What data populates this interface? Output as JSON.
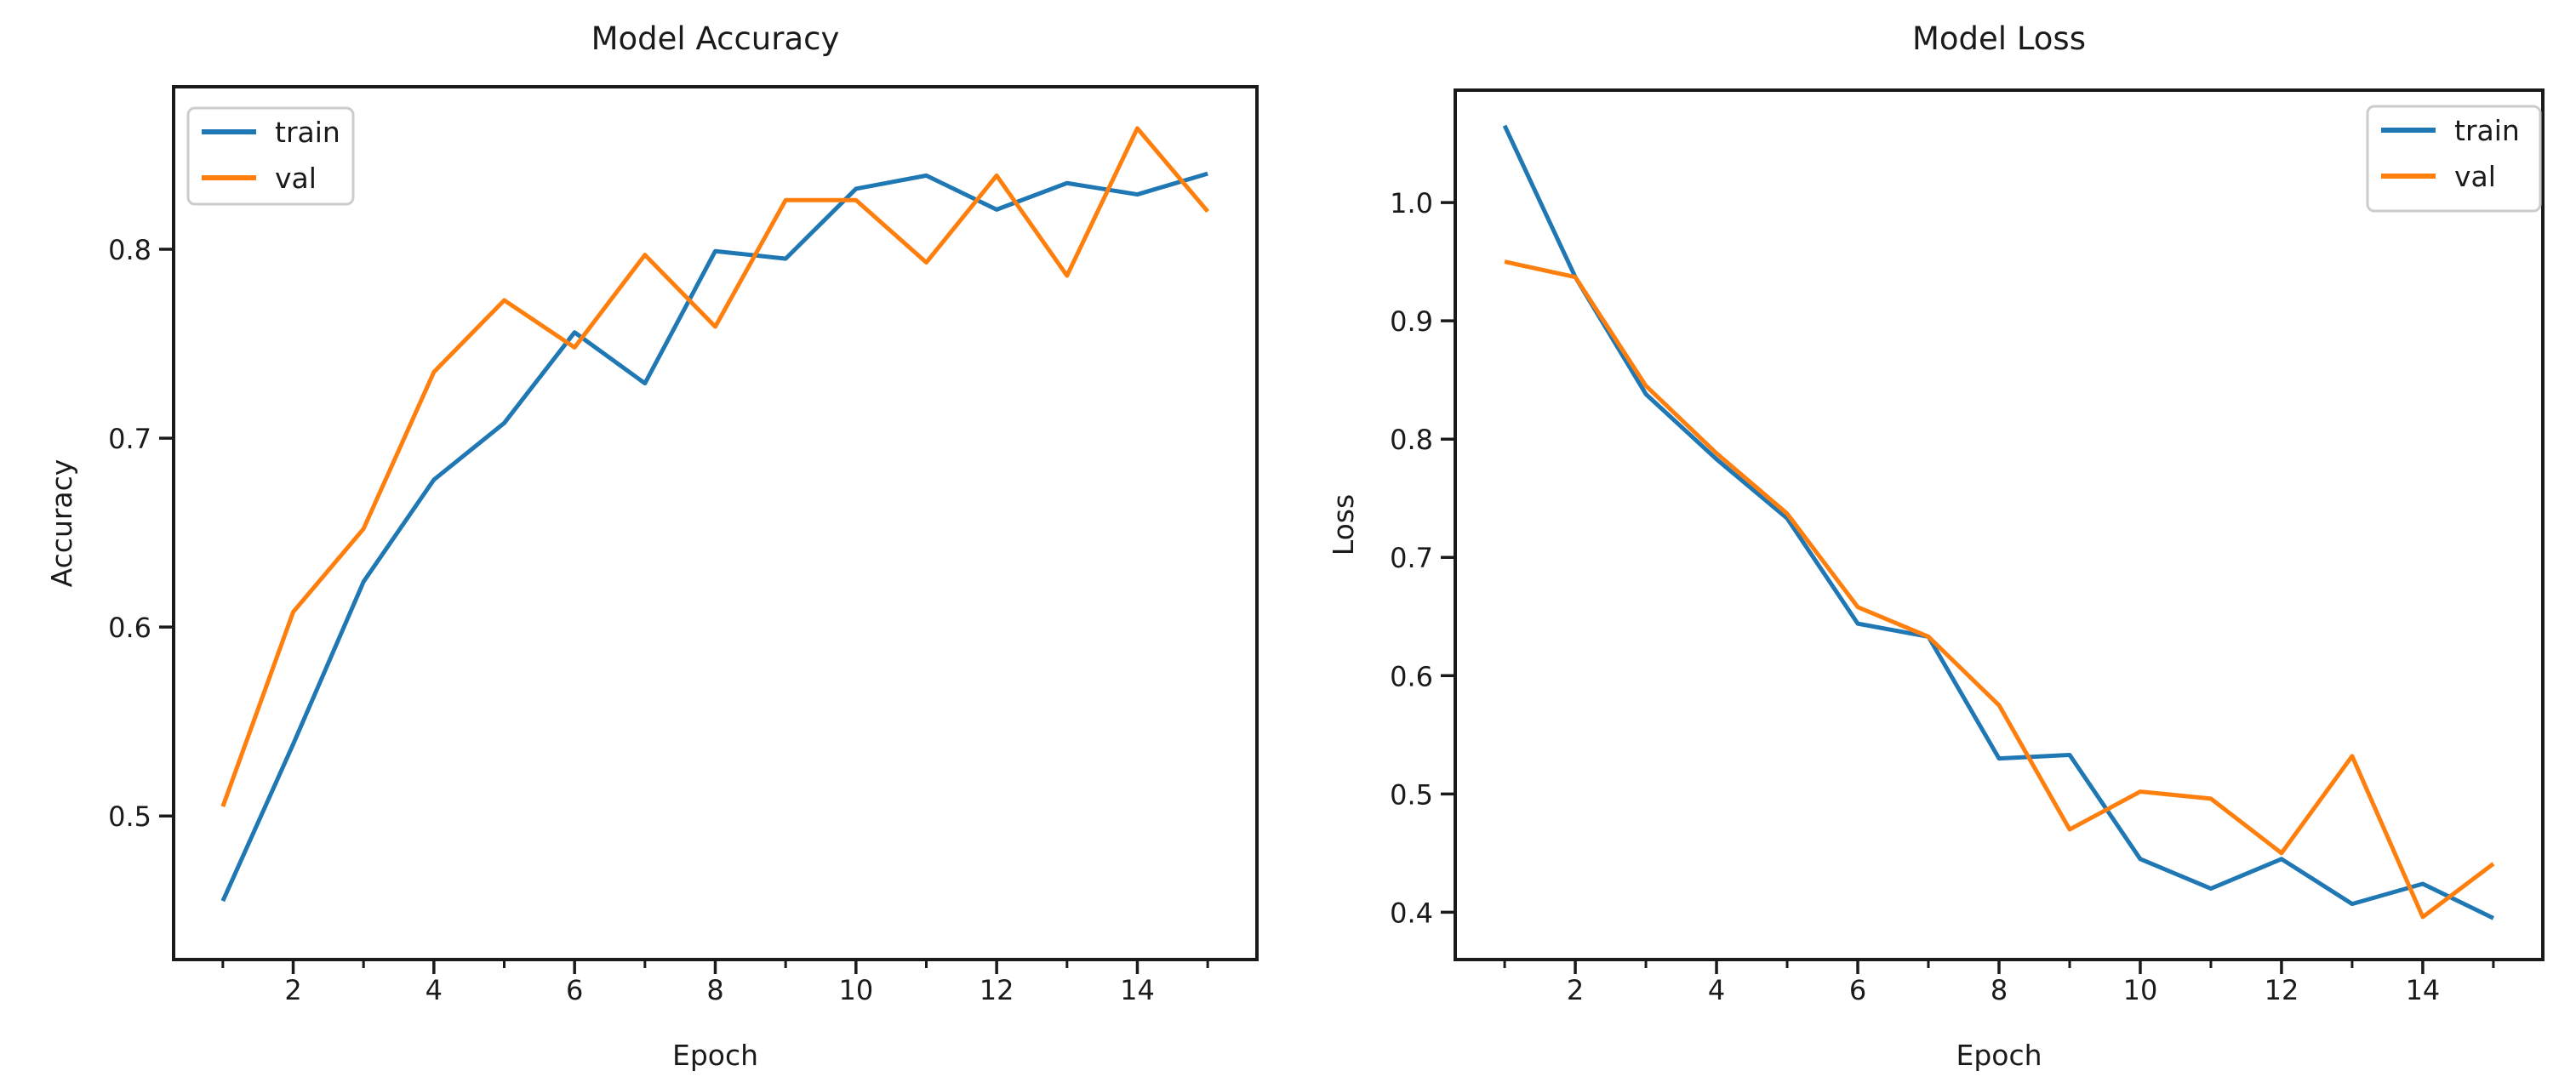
{
  "figure": {
    "background": "#ffffff",
    "text_color": "#1a1a1a",
    "spine_color": "#1a1a1a",
    "legend_border_color": "#cccccc"
  },
  "chart_data": [
    {
      "type": "line",
      "title": "Model Accuracy",
      "xlabel": "Epoch",
      "ylabel": "Accuracy",
      "x": [
        1,
        2,
        3,
        4,
        5,
        6,
        7,
        8,
        9,
        10,
        11,
        12,
        13,
        14,
        15
      ],
      "series": [
        {
          "name": "train",
          "color": "#1f77b4",
          "values": [
            0.455,
            0.538,
            0.624,
            0.678,
            0.708,
            0.756,
            0.729,
            0.799,
            0.795,
            0.832,
            0.839,
            0.821,
            0.835,
            0.829,
            0.84
          ]
        },
        {
          "name": "val",
          "color": "#ff7f0e",
          "values": [
            0.505,
            0.608,
            0.652,
            0.735,
            0.773,
            0.748,
            0.797,
            0.759,
            0.826,
            0.826,
            0.793,
            0.839,
            0.786,
            0.864,
            0.82
          ]
        }
      ],
      "xlim": [
        0.3,
        15.7
      ],
      "ylim": [
        0.424,
        0.886
      ],
      "xticks_major": [
        2,
        4,
        6,
        8,
        10,
        12,
        14
      ],
      "xticks_minor": [
        1,
        3,
        5,
        7,
        9,
        11,
        13,
        15
      ],
      "yticks": [
        0.5,
        0.6,
        0.7,
        0.8
      ],
      "grid": false,
      "legend": {
        "position": "upper-left",
        "entries": [
          "train",
          "val"
        ]
      }
    },
    {
      "type": "line",
      "title": "Model Loss",
      "xlabel": "Epoch",
      "ylabel": "Loss",
      "x": [
        1,
        2,
        3,
        4,
        5,
        6,
        7,
        8,
        9,
        10,
        11,
        12,
        13,
        14,
        15
      ],
      "series": [
        {
          "name": "train",
          "color": "#1f77b4",
          "values": [
            1.065,
            0.937,
            0.838,
            0.783,
            0.733,
            0.644,
            0.633,
            0.53,
            0.533,
            0.445,
            0.42,
            0.445,
            0.407,
            0.424,
            0.395
          ]
        },
        {
          "name": "val",
          "color": "#ff7f0e",
          "values": [
            0.95,
            0.937,
            0.845,
            0.788,
            0.737,
            0.658,
            0.633,
            0.575,
            0.47,
            0.502,
            0.496,
            0.45,
            0.532,
            0.396,
            0.441
          ]
        }
      ],
      "xlim": [
        0.3,
        15.7
      ],
      "ylim": [
        0.36,
        1.095
      ],
      "xticks_major": [
        2,
        4,
        6,
        8,
        10,
        12,
        14
      ],
      "xticks_minor": [
        1,
        3,
        5,
        7,
        9,
        11,
        13,
        15
      ],
      "yticks": [
        0.4,
        0.5,
        0.6,
        0.7,
        0.8,
        0.9,
        1.0
      ],
      "grid": false,
      "legend": {
        "position": "upper-right",
        "entries": [
          "train",
          "val"
        ]
      }
    }
  ]
}
